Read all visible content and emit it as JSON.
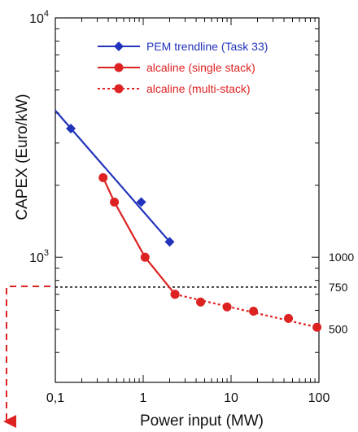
{
  "chart_data": {
    "type": "scatter",
    "title": "",
    "xlabel": "Power input (MW)",
    "ylabel": "CAPEX (Euro/kW)",
    "x_scale": "log",
    "y_scale": "log",
    "xlim": [
      0.1,
      100
    ],
    "ylim": [
      300,
      10000
    ],
    "x_ticks": [
      {
        "value": 0.1,
        "label": "0,1"
      },
      {
        "value": 1,
        "label": "1"
      },
      {
        "value": 10,
        "label": "10"
      },
      {
        "value": 100,
        "label": "100"
      }
    ],
    "y_ticks": [
      {
        "value": 1000,
        "base": "10",
        "exp": "3"
      },
      {
        "value": 10000,
        "base": "10",
        "exp": "4"
      }
    ],
    "right_labels": [
      {
        "value": 1000,
        "label": "1000"
      },
      {
        "value": 750,
        "label": "750"
      },
      {
        "value": 500,
        "label": "500"
      }
    ],
    "reference_line": {
      "y": 750,
      "style": "dotted",
      "color": "#000000"
    },
    "grid": false,
    "legend_position": "top-right",
    "series": [
      {
        "name": "PEM trendline (Task 33)",
        "color": "#2233bb",
        "marker": "diamond",
        "line_style": "solid",
        "points": [
          [
            0.15,
            3450
          ],
          [
            0.95,
            1700
          ],
          [
            2.0,
            1160
          ]
        ],
        "line": [
          [
            0.1,
            4100
          ],
          [
            2.0,
            1160
          ]
        ]
      },
      {
        "name": "alcaline (single stack)",
        "color": "#dd2222",
        "marker": "circle",
        "line_style": "solid",
        "points": [
          [
            0.35,
            2150
          ],
          [
            0.47,
            1700
          ],
          [
            1.05,
            1000
          ],
          [
            2.3,
            700
          ]
        ],
        "line": [
          [
            0.35,
            2150
          ],
          [
            0.47,
            1700
          ],
          [
            1.05,
            1000
          ],
          [
            2.3,
            700
          ]
        ]
      },
      {
        "name": "alcaline  (multi-stack)",
        "color": "#dd2222",
        "marker": "circle",
        "line_style": "dotted",
        "points": [
          [
            2.3,
            700
          ],
          [
            4.5,
            650
          ],
          [
            9.0,
            620
          ],
          [
            18,
            595
          ],
          [
            45,
            555
          ],
          [
            95,
            510
          ]
        ],
        "line": [
          [
            2.3,
            700
          ],
          [
            95,
            510
          ]
        ]
      }
    ]
  }
}
